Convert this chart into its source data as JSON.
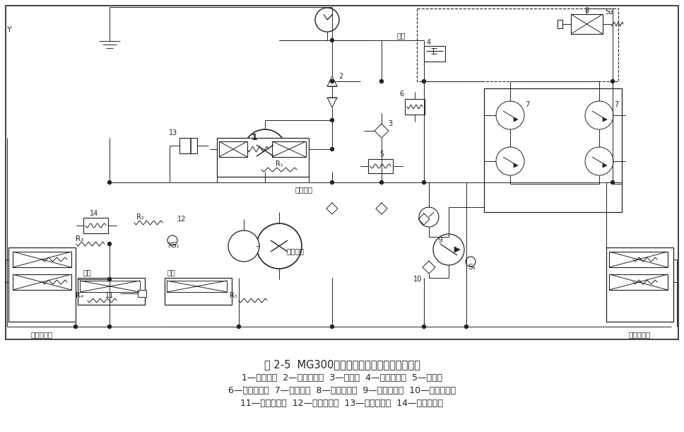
{
  "title": "图 2-5  MG300系列采煤机牵引液压系统原理图",
  "legend1": "1—主液压泵  2—补油单向阀  3—梭形阀  4—压力继电器  5—背压阀",
  "legend2": "6—高压溢流阀  7—液压马达  8—刹车电磁阀  9—辅助液压泵  10—低压溢流阀",
  "legend3": "11—功控电磁阀  12—失压控制阀  13—回零液压缸  14—远程调压阀",
  "bg": "#f5f5f0",
  "lc": "#222222",
  "tc": "#222222"
}
